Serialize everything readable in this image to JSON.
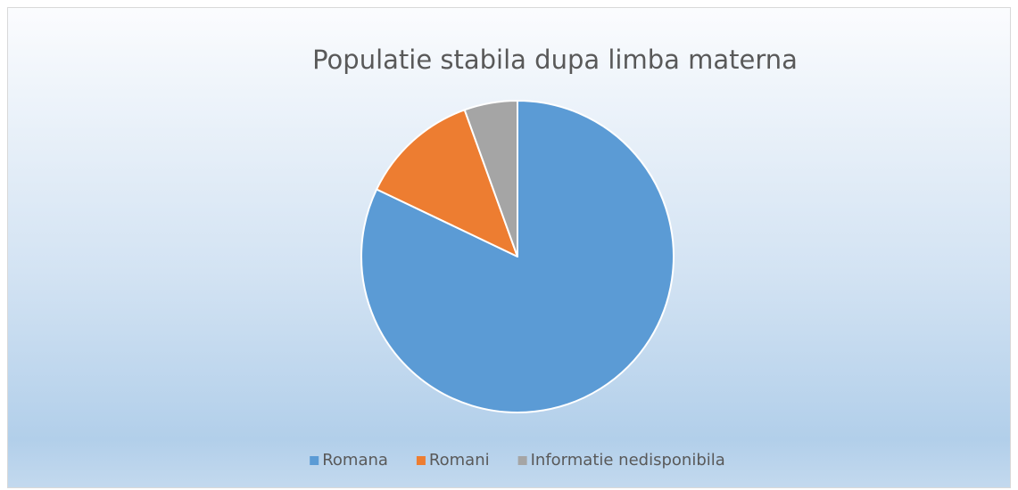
{
  "chart_data": {
    "type": "pie",
    "title": "Populatie stabila dupa limba materna",
    "categories": [
      "Romana",
      "Romani",
      "Informatie nedisponibila"
    ],
    "values": [
      82.1,
      12.4,
      5.5
    ],
    "colors": [
      "#5b9bd5",
      "#ed7d31",
      "#a5a5a5"
    ],
    "legend": "bottom"
  }
}
